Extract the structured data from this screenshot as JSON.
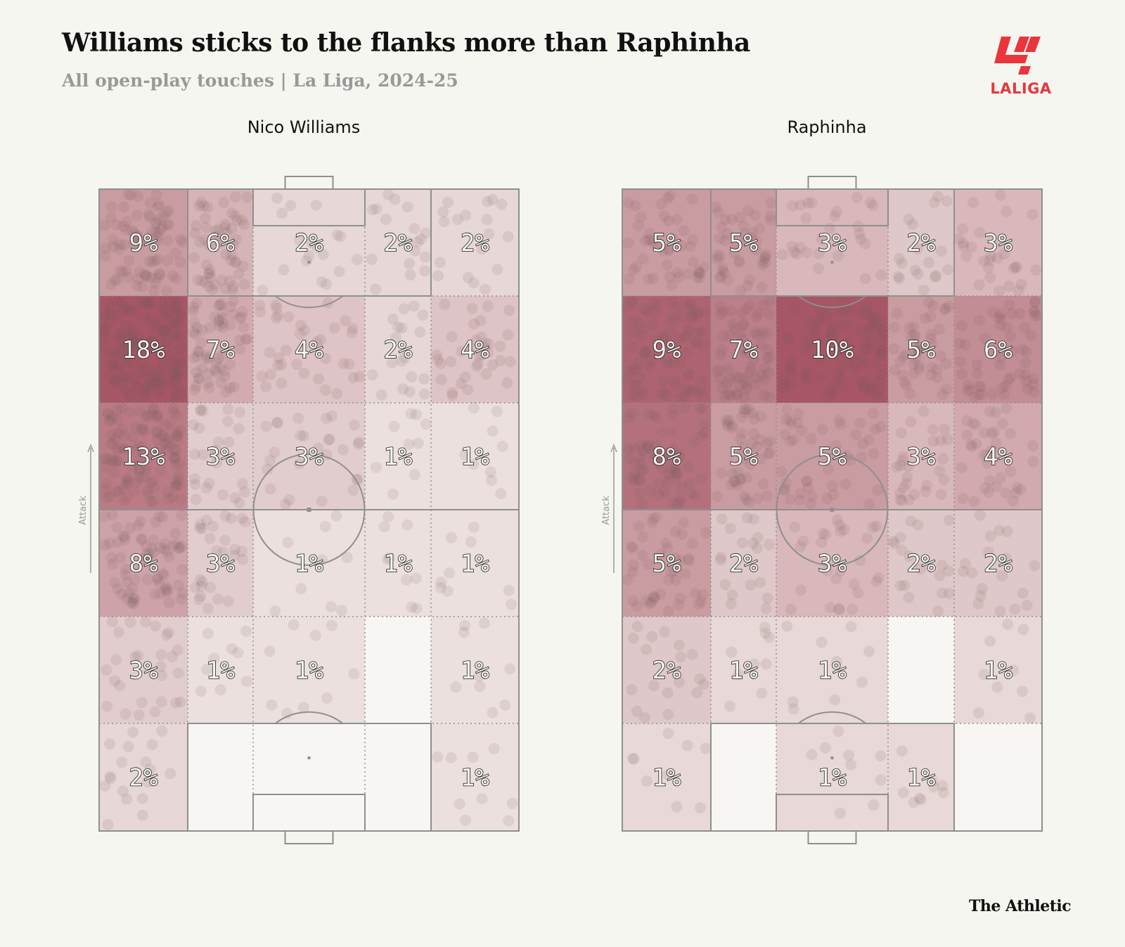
{
  "header": {
    "title": "Williams sticks to the flanks more than Raphinha",
    "subtitle": "All open-play touches | La Liga, 2024-25"
  },
  "logo": {
    "text": "LALIGA",
    "icon": "laliga-logo-icon",
    "color": "#e8363c"
  },
  "credit": "The Athletic",
  "colors": {
    "heat": "#8b2035",
    "dots": "#7a5a60",
    "lines": "#8f8f8f",
    "background": "#f6f6f1"
  },
  "chart_data": [
    {
      "type": "heatmap",
      "title": "Nico Williams",
      "direction_label": "Attack",
      "grid": {
        "rows": 6,
        "cols": 5,
        "top_row": "attacking end"
      },
      "values": [
        [
          9,
          6,
          2,
          2,
          2
        ],
        [
          18,
          7,
          4,
          2,
          4
        ],
        [
          13,
          3,
          3,
          1,
          1
        ],
        [
          8,
          3,
          1,
          1,
          1
        ],
        [
          3,
          1,
          1,
          0,
          1
        ],
        [
          2,
          0,
          0,
          0,
          1
        ]
      ],
      "labels": [
        [
          "9%",
          "6%",
          "2%",
          "2%",
          "2%"
        ],
        [
          "18%",
          "7%",
          "4%",
          "2%",
          "4%"
        ],
        [
          "13%",
          "3%",
          "3%",
          "1%",
          "1%"
        ],
        [
          "8%",
          "3%",
          "1%",
          "1%",
          "1%"
        ],
        [
          "3%",
          "1%",
          "1%",
          "",
          "1%"
        ],
        [
          "2%",
          "",
          "",
          "",
          "1%"
        ]
      ]
    },
    {
      "type": "heatmap",
      "title": "Raphinha",
      "direction_label": "Attack",
      "grid": {
        "rows": 6,
        "cols": 5,
        "top_row": "attacking end"
      },
      "values": [
        [
          5,
          5,
          3,
          2,
          3
        ],
        [
          9,
          7,
          10,
          5,
          6
        ],
        [
          8,
          5,
          5,
          3,
          4
        ],
        [
          5,
          2,
          3,
          2,
          2
        ],
        [
          2,
          1,
          1,
          0,
          1
        ],
        [
          1,
          0,
          1,
          1,
          0
        ]
      ],
      "labels": [
        [
          "5%",
          "5%",
          "3%",
          "2%",
          "3%"
        ],
        [
          "9%",
          "7%",
          "10%",
          "5%",
          "6%"
        ],
        [
          "8%",
          "5%",
          "5%",
          "3%",
          "4%"
        ],
        [
          "5%",
          "2%",
          "3%",
          "2%",
          "2%"
        ],
        [
          "2%",
          "1%",
          "1%",
          "",
          "1%"
        ],
        [
          "1%",
          "",
          "1%",
          "1%",
          ""
        ]
      ]
    }
  ]
}
